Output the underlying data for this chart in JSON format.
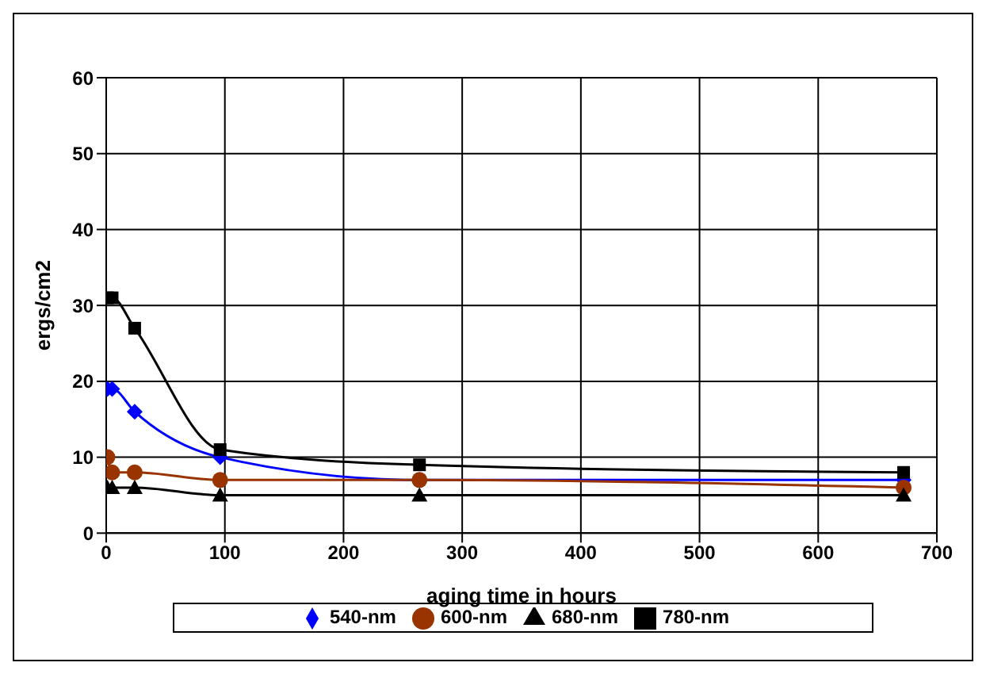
{
  "chart_data": {
    "type": "line",
    "xlabel": "aging time in hours",
    "ylabel": "ergs/cm2",
    "x": [
      1,
      5,
      24,
      96,
      264,
      672
    ],
    "series": [
      {
        "name": "540-nm",
        "color": "#0000ff",
        "marker": "diamond",
        "values": [
          19,
          19,
          16,
          10,
          7,
          7
        ]
      },
      {
        "name": "600-nm",
        "color": "#993300",
        "marker": "circle",
        "values": [
          10,
          8,
          8,
          7,
          7,
          6
        ]
      },
      {
        "name": "680-nm",
        "color": "#000000",
        "marker": "triangle",
        "values": [
          6,
          6,
          6,
          5,
          5,
          5
        ]
      },
      {
        "name": "780-nm",
        "color": "#000000",
        "marker": "square",
        "values": [
          31,
          31,
          27,
          11,
          9,
          8
        ]
      }
    ],
    "xlim": [
      0,
      700
    ],
    "xticks": [
      0,
      100,
      200,
      300,
      400,
      500,
      600,
      700
    ],
    "ylim": [
      0,
      60
    ],
    "yticks": [
      0,
      10,
      20,
      30,
      40,
      50,
      60
    ],
    "grid": true,
    "legend": "bottom",
    "line_style": "solid"
  }
}
